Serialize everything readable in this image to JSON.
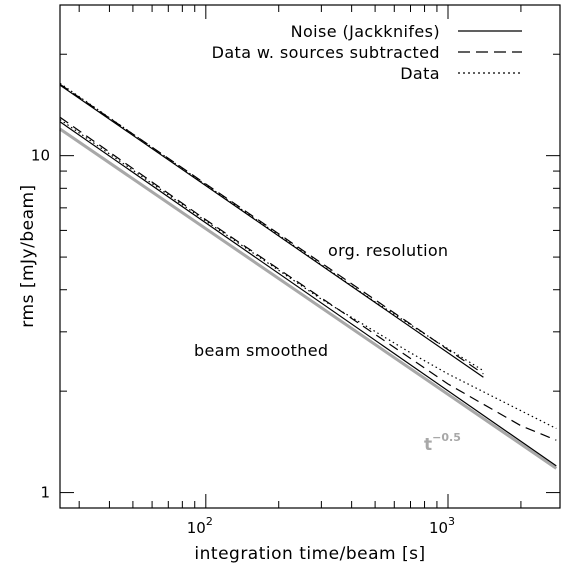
{
  "chart_data": {
    "type": "line",
    "xlabel": "integration time/beam [s]",
    "ylabel": "rms [mJy/beam]",
    "xscale": "log",
    "yscale": "log",
    "xlim": [
      25,
      2900
    ],
    "ylim": [
      0.9,
      28
    ],
    "x_ticks": [
      {
        "value": 100,
        "base": "10",
        "exp": "2"
      },
      {
        "value": 1000,
        "base": "10",
        "exp": "3"
      }
    ],
    "y_ticks": [
      {
        "value": 1,
        "label": "1"
      },
      {
        "value": 10,
        "label": "10"
      }
    ],
    "legend": {
      "position": "top-right",
      "entries": [
        {
          "label": "Noise (Jackknifes)",
          "style": "solid"
        },
        {
          "label": "Data w. sources subtracted",
          "style": "dashed"
        },
        {
          "label": "Data",
          "style": "dotted"
        }
      ]
    },
    "annotations": {
      "org": "org. resolution",
      "smooth": "beam smoothed",
      "power_base": "t",
      "power_exp": "−0.5"
    },
    "series": [
      {
        "style": "solid",
        "group": "org",
        "x": [
          25,
          1400
        ],
        "y": [
          16.2,
          2.2
        ]
      },
      {
        "style": "dashed",
        "group": "org",
        "x": [
          25,
          1400
        ],
        "y": [
          16.3,
          2.25
        ]
      },
      {
        "style": "dotted",
        "group": "org",
        "x": [
          25,
          100,
          500,
          900,
          1400
        ],
        "y": [
          16.4,
          8.2,
          3.68,
          2.8,
          2.3
        ]
      },
      {
        "style": "solid",
        "group": "smooth",
        "x": [
          25,
          2800
        ],
        "y": [
          12.6,
          1.2
        ]
      },
      {
        "style": "dashed",
        "group": "smooth",
        "x": [
          25,
          100,
          500,
          1000,
          2000,
          2800
        ],
        "y": [
          13.0,
          6.45,
          2.95,
          2.1,
          1.58,
          1.43
        ]
      },
      {
        "style": "dotted",
        "group": "smooth",
        "x": [
          25,
          100,
          300,
          700,
          1000,
          2000,
          2800
        ],
        "y": [
          12.8,
          6.4,
          3.75,
          2.6,
          2.25,
          1.75,
          1.55
        ]
      },
      {
        "style": "reference",
        "group": "t^-0.5",
        "x": [
          25,
          2800
        ],
        "y": [
          12.0,
          1.18
        ],
        "color": "#a8a8a8"
      }
    ]
  }
}
